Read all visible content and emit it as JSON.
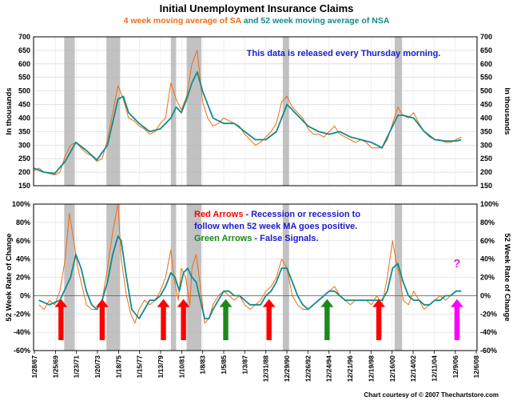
{
  "title": "Initial Unemployment Insurance Claims",
  "subtitle_sa": "4 week moving average of SA",
  "subtitle_and": " and ",
  "subtitle_nsa": "52 week moving average of NSA",
  "copyright": "Chart courtesy of © 2007 Thechartstore.com",
  "chart_data": [
    {
      "type": "line",
      "ylabel": "In thousands",
      "ylabel_right": "In thousands",
      "ylim": [
        150,
        700
      ],
      "yticks": [
        "150",
        "200",
        "250",
        "300",
        "350",
        "400",
        "450",
        "500",
        "550",
        "600",
        "650",
        "700"
      ],
      "annotation": "This data is released every Thursday morning.",
      "recession_bands": [
        [
          1969.9,
          1970.9
        ],
        [
          1973.9,
          1975.2
        ],
        [
          1980.0,
          1980.5
        ],
        [
          1981.5,
          1982.9
        ],
        [
          1990.6,
          1991.2
        ],
        [
          2001.2,
          2001.9
        ]
      ],
      "series": [
        {
          "color": "#f26b12",
          "x": [
            1967.0,
            1967.5,
            1968.0,
            1968.5,
            1969.0,
            1969.5,
            1970.0,
            1970.5,
            1971.0,
            1971.5,
            1972.0,
            1972.5,
            1973.0,
            1973.5,
            1974.0,
            1974.5,
            1975.0,
            1975.5,
            1976.0,
            1976.5,
            1977.0,
            1977.5,
            1978.0,
            1978.5,
            1979.0,
            1979.5,
            1980.0,
            1980.5,
            1981.0,
            1981.5,
            1982.0,
            1982.5,
            1983.0,
            1983.5,
            1984.0,
            1984.5,
            1985.0,
            1985.5,
            1986.0,
            1986.5,
            1987.0,
            1987.5,
            1988.0,
            1988.5,
            1989.0,
            1989.5,
            1990.0,
            1990.5,
            1991.0,
            1991.5,
            1992.0,
            1992.5,
            1993.0,
            1993.5,
            1994.0,
            1994.5,
            1995.0,
            1995.5,
            1996.0,
            1996.5,
            1997.0,
            1997.5,
            1998.0,
            1998.5,
            1999.0,
            1999.5,
            2000.0,
            2000.5,
            2001.0,
            2001.5,
            2002.0,
            2002.5,
            2003.0,
            2003.5,
            2004.0,
            2004.5,
            2005.0,
            2005.5,
            2006.0,
            2006.5,
            2007.0,
            2007.5
          ],
          "values": [
            205,
            215,
            200,
            195,
            190,
            200,
            260,
            300,
            310,
            290,
            270,
            260,
            240,
            250,
            320,
            420,
            520,
            470,
            400,
            390,
            370,
            360,
            340,
            350,
            380,
            400,
            530,
            470,
            430,
            480,
            600,
            650,
            460,
            400,
            370,
            380,
            400,
            390,
            380,
            370,
            340,
            320,
            300,
            310,
            330,
            350,
            380,
            460,
            480,
            440,
            420,
            400,
            360,
            340,
            340,
            330,
            350,
            370,
            340,
            330,
            320,
            310,
            320,
            310,
            290,
            290,
            290,
            320,
            380,
            440,
            410,
            400,
            420,
            380,
            350,
            330,
            320,
            320,
            310,
            310,
            320,
            330
          ]
        },
        {
          "color": "#138a8a",
          "x": [
            1967.0,
            1968.0,
            1969.0,
            1970.0,
            1971.0,
            1972.0,
            1973.0,
            1974.0,
            1975.0,
            1975.5,
            1976.0,
            1977.0,
            1978.0,
            1979.0,
            1980.0,
            1980.5,
            1981.0,
            1981.5,
            1982.0,
            1982.5,
            1983.0,
            1984.0,
            1985.0,
            1986.0,
            1987.0,
            1988.0,
            1989.0,
            1990.0,
            1991.0,
            1991.5,
            1992.0,
            1993.0,
            1994.0,
            1995.0,
            1996.0,
            1997.0,
            1998.0,
            1999.0,
            2000.0,
            2001.0,
            2001.5,
            2002.0,
            2003.0,
            2004.0,
            2005.0,
            2006.0,
            2007.0,
            2007.5
          ],
          "values": [
            215,
            200,
            195,
            240,
            310,
            280,
            245,
            300,
            470,
            480,
            420,
            380,
            350,
            360,
            400,
            440,
            420,
            470,
            530,
            570,
            500,
            400,
            380,
            380,
            350,
            320,
            320,
            350,
            450,
            430,
            410,
            370,
            350,
            340,
            350,
            330,
            320,
            310,
            290,
            370,
            410,
            410,
            400,
            350,
            320,
            315,
            315,
            320
          ]
        }
      ]
    },
    {
      "type": "line",
      "ylabel": "52 Week Rate of Change",
      "ylabel_right": "52 Week Rate of Change",
      "ylim": [
        -60,
        100
      ],
      "yticks": [
        "-60%",
        "-40%",
        "-20%",
        "0%",
        "20%",
        "40%",
        "60%",
        "80%",
        "100%"
      ],
      "annotations": [
        {
          "label": "Red Arrows",
          "color": "#ff0000"
        },
        {
          "label": " - Recession or recession to",
          "color": "#1a1acc"
        },
        {
          "label": "follow when 52 week MA goes positive.",
          "color": "#1a1acc"
        },
        {
          "label": "Green Arrows",
          "color": "#1a8a1a"
        },
        {
          "label": " - False Signals.",
          "color": "#1a1acc"
        },
        {
          "label": "?",
          "color": "#e020e0"
        }
      ],
      "red_arrows": [
        1969.6,
        1973.5,
        1979.3,
        1981.2,
        1989.3,
        1999.7
      ],
      "green_arrows": [
        1985.2,
        1994.8
      ],
      "magenta_arrows": [
        2007.1
      ],
      "series": [
        {
          "color": "#f26b12",
          "x": [
            1967.5,
            1968.0,
            1968.5,
            1969.0,
            1969.5,
            1970.0,
            1970.4,
            1970.8,
            1971.2,
            1971.6,
            1972.0,
            1972.5,
            1973.0,
            1973.5,
            1974.0,
            1974.5,
            1975.0,
            1975.3,
            1975.8,
            1976.2,
            1976.6,
            1977.0,
            1977.5,
            1978.0,
            1978.5,
            1979.0,
            1979.5,
            1980.0,
            1980.3,
            1980.7,
            1981.0,
            1981.4,
            1981.8,
            1982.0,
            1982.4,
            1982.8,
            1983.2,
            1983.6,
            1984.0,
            1984.5,
            1985.0,
            1985.5,
            1986.0,
            1986.5,
            1987.0,
            1987.5,
            1988.0,
            1988.5,
            1989.0,
            1989.5,
            1990.0,
            1990.5,
            1991.0,
            1991.5,
            1992.0,
            1992.5,
            1993.0,
            1993.5,
            1994.0,
            1994.5,
            1995.0,
            1995.5,
            1996.0,
            1996.5,
            1997.0,
            1997.5,
            1998.0,
            1998.5,
            1999.0,
            1999.5,
            2000.0,
            2000.5,
            2001.0,
            2001.3,
            2001.7,
            2002.0,
            2002.5,
            2003.0,
            2003.5,
            2004.0,
            2004.5,
            2005.0,
            2005.5,
            2006.0,
            2006.5,
            2007.0,
            2007.5
          ],
          "values": [
            -10,
            -15,
            -5,
            -10,
            5,
            40,
            90,
            60,
            30,
            10,
            -10,
            -15,
            -15,
            -5,
            30,
            70,
            100,
            40,
            0,
            -20,
            -30,
            -15,
            -5,
            -10,
            -5,
            5,
            20,
            50,
            20,
            -5,
            30,
            20,
            -10,
            30,
            45,
            10,
            -30,
            -25,
            -10,
            0,
            5,
            0,
            -5,
            0,
            -10,
            -15,
            -10,
            -5,
            5,
            10,
            20,
            40,
            30,
            0,
            -10,
            -15,
            -15,
            -10,
            -5,
            0,
            5,
            10,
            0,
            -5,
            -10,
            -5,
            -5,
            -5,
            -10,
            0,
            -10,
            20,
            60,
            40,
            20,
            -5,
            -10,
            5,
            -5,
            -15,
            -10,
            -5,
            0,
            -5,
            0,
            5,
            5
          ]
        },
        {
          "color": "#138a8a",
          "x": [
            1967.5,
            1968.5,
            1969.5,
            1970.5,
            1971.0,
            1971.5,
            1972.0,
            1972.5,
            1973.0,
            1973.5,
            1974.0,
            1974.5,
            1975.0,
            1975.3,
            1975.8,
            1976.3,
            1977.0,
            1977.5,
            1978.0,
            1978.5,
            1979.0,
            1979.5,
            1980.0,
            1980.4,
            1980.8,
            1981.2,
            1981.6,
            1982.0,
            1982.4,
            1982.8,
            1983.2,
            1983.6,
            1984.0,
            1984.5,
            1985.0,
            1985.5,
            1986.0,
            1986.5,
            1987.0,
            1987.5,
            1988.0,
            1988.5,
            1989.0,
            1989.5,
            1990.0,
            1990.5,
            1991.0,
            1991.5,
            1992.0,
            1992.5,
            1993.0,
            1993.5,
            1994.0,
            1994.5,
            1995.0,
            1995.5,
            1996.0,
            1996.5,
            1997.0,
            1997.5,
            1998.0,
            1998.5,
            1999.0,
            1999.5,
            2000.0,
            2000.5,
            2001.0,
            2001.5,
            2002.0,
            2002.5,
            2003.0,
            2003.5,
            2004.0,
            2004.5,
            2005.0,
            2005.5,
            2006.0,
            2006.5,
            2007.0,
            2007.5
          ],
          "values": [
            -5,
            -10,
            -5,
            20,
            45,
            30,
            5,
            -10,
            -15,
            -5,
            15,
            45,
            65,
            60,
            20,
            -15,
            -25,
            -15,
            -5,
            -5,
            0,
            10,
            25,
            20,
            5,
            25,
            30,
            20,
            15,
            -5,
            -25,
            -25,
            -15,
            -5,
            5,
            5,
            0,
            0,
            -5,
            -10,
            -10,
            -10,
            0,
            5,
            15,
            30,
            30,
            15,
            0,
            -10,
            -15,
            -10,
            -5,
            0,
            5,
            5,
            0,
            -5,
            -5,
            -5,
            -5,
            -5,
            -5,
            -5,
            -5,
            5,
            30,
            35,
            15,
            0,
            -5,
            -5,
            -10,
            -10,
            -5,
            -5,
            0,
            0,
            5,
            5
          ]
        }
      ]
    }
  ],
  "x_axis": {
    "xlim": [
      1967,
      2009
    ],
    "ticks": [
      {
        "label": "1/28/67",
        "x": 1967.08
      },
      {
        "label": "1/25/69",
        "x": 1969.07
      },
      {
        "label": "1/23/71",
        "x": 1971.06
      },
      {
        "label": "1/20/73",
        "x": 1973.05
      },
      {
        "label": "1/18/75",
        "x": 1975.05
      },
      {
        "label": "1/15/77",
        "x": 1977.04
      },
      {
        "label": "1/13/79",
        "x": 1979.03
      },
      {
        "label": "1/10/81",
        "x": 1981.03
      },
      {
        "label": "1/8/83",
        "x": 1983.02
      },
      {
        "label": "1/5/85",
        "x": 1985.01
      },
      {
        "label": "1/3/87",
        "x": 1987.0
      },
      {
        "label": "12/31/88",
        "x": 1989.0
      },
      {
        "label": "12/29/90",
        "x": 1990.99
      },
      {
        "label": "12/26/92",
        "x": 1992.98
      },
      {
        "label": "12/24/94",
        "x": 1994.98
      },
      {
        "label": "12/21/96",
        "x": 1996.97
      },
      {
        "label": "12/19/98",
        "x": 1998.96
      },
      {
        "label": "12/16/00",
        "x": 2000.96
      },
      {
        "label": "12/14/02",
        "x": 2002.95
      },
      {
        "label": "12/11/04",
        "x": 2004.94
      },
      {
        "label": "12/9/06",
        "x": 2006.94
      },
      {
        "label": "12/6/08",
        "x": 2008.93
      }
    ]
  }
}
